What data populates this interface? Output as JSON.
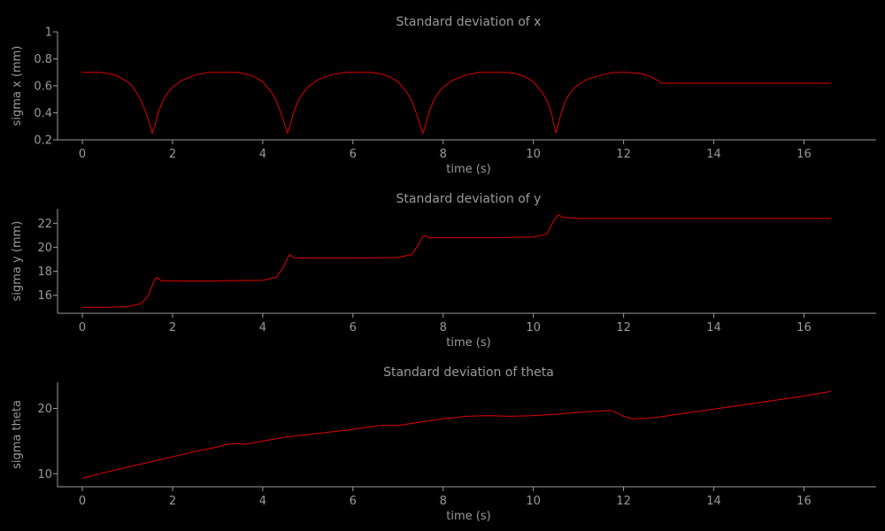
{
  "colors": {
    "background": "#000000",
    "axis": "#9a9a9a",
    "line": "#e00000"
  },
  "chart_data": [
    {
      "type": "line",
      "title": "Standard deviation of x",
      "xlabel": "time (s)",
      "ylabel": "sigma x (mm)",
      "xlim": [
        -0.55,
        17.6
      ],
      "ylim": [
        0.2,
        1.0
      ],
      "xticks": [
        "0",
        "2",
        "4",
        "6",
        "8",
        "10",
        "12",
        "14",
        "16"
      ],
      "yticks": [
        "0.2",
        "0.4",
        "0.6",
        "0.8",
        "1"
      ],
      "series": [
        {
          "x": [
            0,
            0.2,
            0.4,
            0.6,
            0.8,
            1.0,
            1.1,
            1.2,
            1.3,
            1.4,
            1.5,
            1.55,
            1.6,
            1.7,
            1.8,
            1.9,
            2.0,
            2.2,
            2.5,
            2.8,
            3.1,
            3.4,
            3.6,
            3.8,
            4.0,
            4.2,
            4.3,
            4.4,
            4.5,
            4.55,
            4.6,
            4.7,
            4.8,
            4.9,
            5.0,
            5.2,
            5.5,
            5.8,
            6.1,
            6.4,
            6.6,
            6.8,
            7.0,
            7.2,
            7.3,
            7.4,
            7.5,
            7.55,
            7.6,
            7.7,
            7.8,
            7.9,
            8.0,
            8.2,
            8.5,
            8.8,
            9.1,
            9.4,
            9.6,
            9.8,
            10.0,
            10.2,
            10.3,
            10.4,
            10.45,
            10.5,
            10.6,
            10.7,
            10.8,
            10.9,
            11.0,
            11.2,
            11.5,
            11.8,
            12.1,
            12.4,
            12.6,
            12.8,
            12.85,
            13.0,
            13.5,
            14.0,
            14.5,
            15.0,
            15.5,
            16.0,
            16.5,
            16.6
          ],
          "y": [
            0.7,
            0.7,
            0.7,
            0.69,
            0.67,
            0.63,
            0.6,
            0.55,
            0.49,
            0.41,
            0.31,
            0.25,
            0.3,
            0.42,
            0.5,
            0.55,
            0.59,
            0.64,
            0.68,
            0.7,
            0.7,
            0.7,
            0.69,
            0.67,
            0.63,
            0.55,
            0.49,
            0.4,
            0.3,
            0.25,
            0.3,
            0.42,
            0.5,
            0.55,
            0.59,
            0.64,
            0.68,
            0.7,
            0.7,
            0.7,
            0.69,
            0.67,
            0.63,
            0.55,
            0.49,
            0.4,
            0.3,
            0.25,
            0.3,
            0.42,
            0.5,
            0.55,
            0.59,
            0.64,
            0.68,
            0.7,
            0.7,
            0.7,
            0.69,
            0.67,
            0.63,
            0.55,
            0.49,
            0.4,
            0.32,
            0.25,
            0.38,
            0.48,
            0.54,
            0.58,
            0.61,
            0.65,
            0.68,
            0.7,
            0.7,
            0.69,
            0.67,
            0.63,
            0.62,
            0.62,
            0.62,
            0.62,
            0.62,
            0.62,
            0.62,
            0.62,
            0.62,
            0.62
          ]
        }
      ]
    },
    {
      "type": "line",
      "title": "Standard deviation of y",
      "xlabel": "time (s)",
      "ylabel": "sigma y (mm)",
      "xlim": [
        -0.55,
        17.6
      ],
      "ylim": [
        14.5,
        23.2
      ],
      "xticks": [
        "0",
        "2",
        "4",
        "6",
        "8",
        "10",
        "12",
        "14",
        "16"
      ],
      "yticks": [
        "16",
        "18",
        "20",
        "22"
      ],
      "series": [
        {
          "x": [
            0,
            0.5,
            1.0,
            1.3,
            1.45,
            1.55,
            1.6,
            1.65,
            1.75,
            2.0,
            3.0,
            4.0,
            4.3,
            4.45,
            4.55,
            4.6,
            4.7,
            5.0,
            6.0,
            7.0,
            7.3,
            7.45,
            7.55,
            7.6,
            7.7,
            8.0,
            9.0,
            10.0,
            10.3,
            10.45,
            10.55,
            10.65,
            11.0,
            12.0,
            13.0,
            14.0,
            15.0,
            16.0,
            16.6
          ],
          "y": [
            15.0,
            15.0,
            15.05,
            15.3,
            15.9,
            16.8,
            17.3,
            17.5,
            17.2,
            17.2,
            17.2,
            17.25,
            17.5,
            18.3,
            19.1,
            19.4,
            19.1,
            19.1,
            19.1,
            19.15,
            19.4,
            20.2,
            20.9,
            21.0,
            20.8,
            20.8,
            20.8,
            20.85,
            21.1,
            22.2,
            22.7,
            22.5,
            22.4,
            22.4,
            22.4,
            22.4,
            22.4,
            22.4,
            22.4
          ]
        }
      ]
    },
    {
      "type": "line",
      "title": "Standard deviation of theta",
      "xlabel": "time (s)",
      "ylabel": "sigma theta",
      "xlim": [
        -0.55,
        17.6
      ],
      "ylim": [
        8.0,
        24.0
      ],
      "xticks": [
        "0",
        "2",
        "4",
        "6",
        "8",
        "10",
        "12",
        "14",
        "16"
      ],
      "yticks": [
        "10",
        "20"
      ],
      "series": [
        {
          "x": [
            0,
            0.5,
            1.0,
            1.5,
            2.0,
            2.5,
            3.0,
            3.2,
            3.4,
            3.6,
            4.0,
            4.5,
            5.0,
            5.5,
            6.0,
            6.5,
            6.6,
            7.0,
            7.5,
            8.0,
            8.5,
            9.0,
            9.5,
            10.0,
            10.5,
            11.0,
            11.5,
            11.7,
            11.8,
            12.0,
            12.2,
            12.5,
            12.8,
            13.0,
            13.5,
            14.0,
            14.5,
            15.0,
            15.5,
            16.0,
            16.6
          ],
          "y": [
            9.3,
            10.2,
            11.0,
            11.8,
            12.6,
            13.4,
            14.1,
            14.5,
            14.6,
            14.5,
            15.0,
            15.6,
            16.0,
            16.4,
            16.8,
            17.3,
            17.4,
            17.4,
            17.9,
            18.4,
            18.8,
            18.9,
            18.8,
            18.9,
            19.1,
            19.4,
            19.6,
            19.7,
            19.5,
            18.8,
            18.4,
            18.5,
            18.7,
            18.9,
            19.4,
            19.9,
            20.4,
            20.9,
            21.4,
            21.9,
            22.6
          ]
        }
      ]
    }
  ]
}
